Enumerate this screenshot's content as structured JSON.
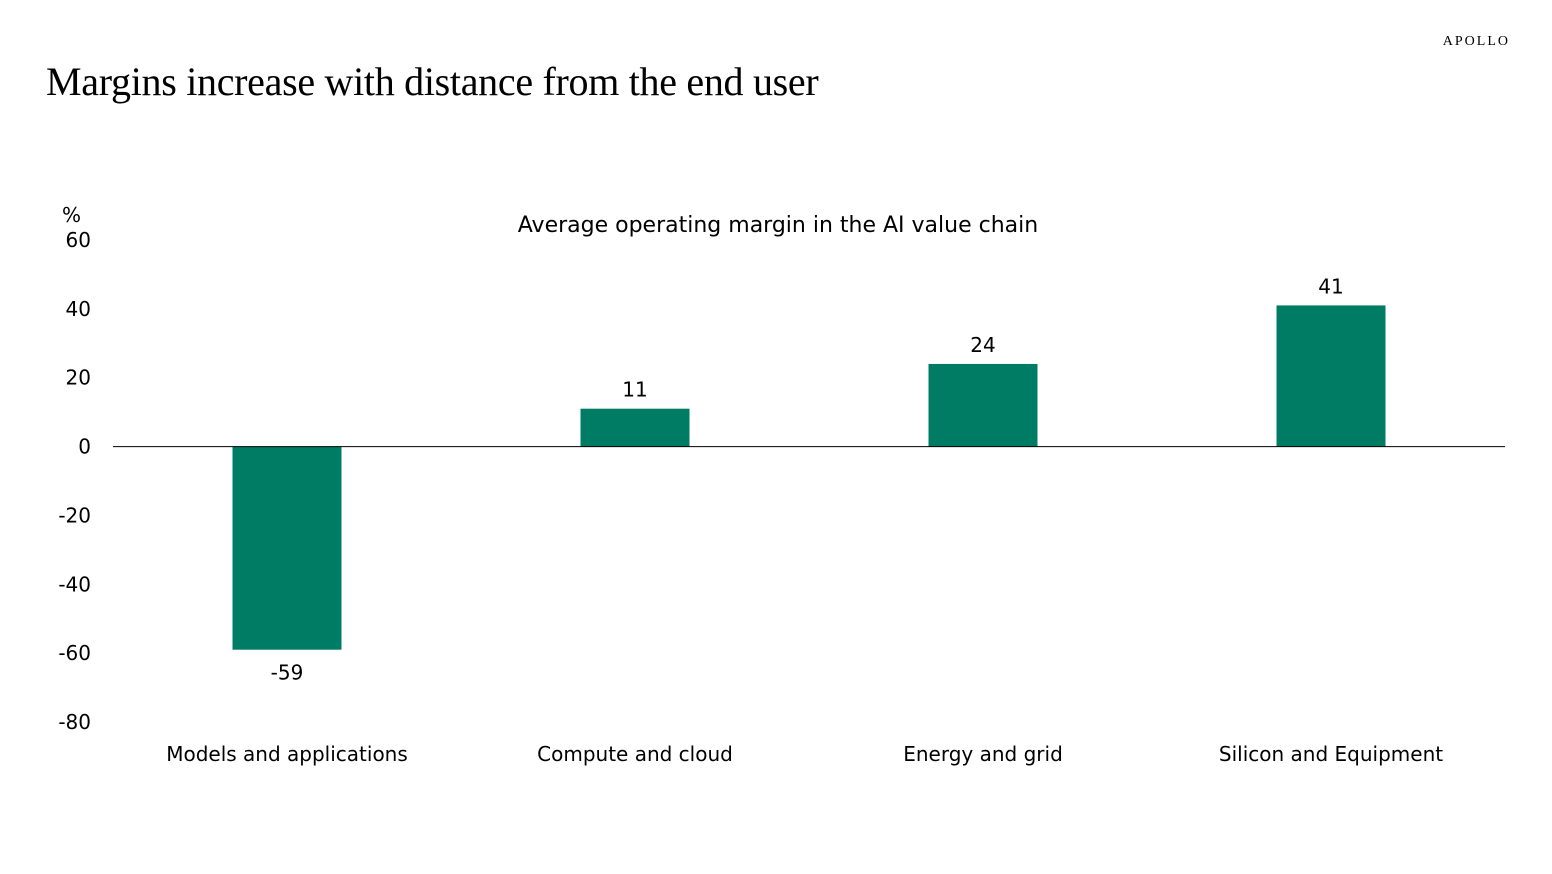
{
  "header": {
    "brand": "APOLLO",
    "title": "Margins increase with distance from the end user"
  },
  "chart_data": {
    "type": "bar",
    "title": "Average operating margin in the AI value chain",
    "ylabel": "%",
    "categories": [
      "Models and applications",
      "Compute and cloud",
      "Energy and grid",
      "Silicon and Equipment"
    ],
    "values": [
      -59,
      11,
      24,
      41
    ],
    "data_labels": [
      "-59",
      "11",
      "24",
      "41"
    ],
    "ylim": [
      -80,
      60
    ],
    "yticks": [
      60,
      40,
      20,
      0,
      -20,
      -40,
      -60,
      -80
    ],
    "ytick_labels": [
      "60",
      "40",
      "20",
      "0",
      "-20",
      "-40",
      "-60",
      "-80"
    ],
    "grid": false,
    "legend": "none",
    "bar_color": "#007C65"
  }
}
